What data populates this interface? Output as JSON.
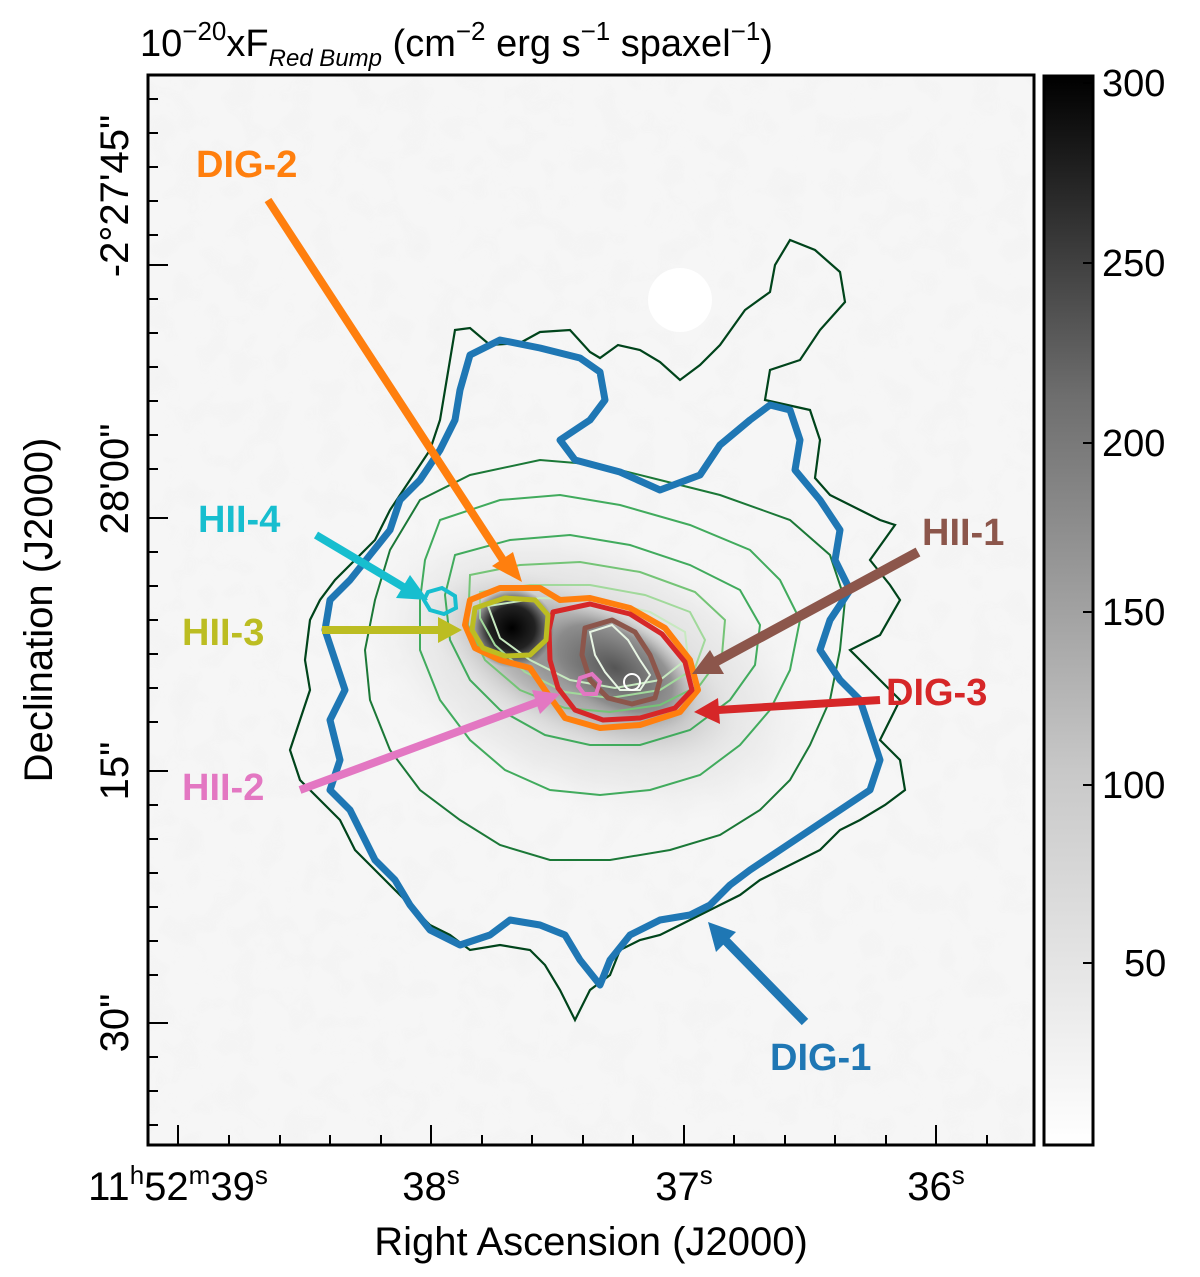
{
  "title": {
    "prefix": "10",
    "exp": "−20",
    "mid": "xF",
    "sub": "Red Bump",
    "unit_a": " (cm",
    "unit_a_exp": "−2",
    "unit_b": " erg s",
    "unit_b_exp": "−1",
    "unit_c": " spaxel",
    "unit_c_exp": "−1",
    "unit_end": ")"
  },
  "x_axis": {
    "label": "Right Ascension (J2000)",
    "ticks": [
      {
        "pre": "11",
        "h": "h",
        "mid": "52",
        "m": "m",
        "val": "39",
        "s": "s"
      },
      {
        "val": "38",
        "s": "s"
      },
      {
        "val": "37",
        "s": "s"
      },
      {
        "val": "36",
        "s": "s"
      }
    ]
  },
  "y_axis": {
    "label": "Declination (J2000)",
    "ticks": [
      "-2°27'45\"",
      "-2°",
      "28'00\"",
      "28'00\"",
      "15\"",
      "30\""
    ],
    "tick_labels": {
      "t45": "-2°27'45\"",
      "t00": "28'00\"",
      "t15": "15\"",
      "t30": "30\""
    }
  },
  "colorbar": {
    "ticks": [
      "300",
      "250",
      "200",
      "150",
      "100",
      "50"
    ],
    "range": [
      5,
      300
    ],
    "colormap": "grayscale (white→black)"
  },
  "regions": [
    {
      "name": "DIG-2",
      "color": "#ff7f0e"
    },
    {
      "name": "HII-4",
      "color": "#17becf"
    },
    {
      "name": "HII-3",
      "color": "#bcbd22"
    },
    {
      "name": "HII-1",
      "color": "#8c564b"
    },
    {
      "name": "DIG-3",
      "color": "#d62728"
    },
    {
      "name": "HII-2",
      "color": "#e377c2"
    },
    {
      "name": "DIG-1",
      "color": "#1f77b4"
    }
  ],
  "contour_colors": [
    "#00441b",
    "#1b7837",
    "#41ab5d",
    "#74c476",
    "#a1d99b",
    "#c7e9c0"
  ]
}
